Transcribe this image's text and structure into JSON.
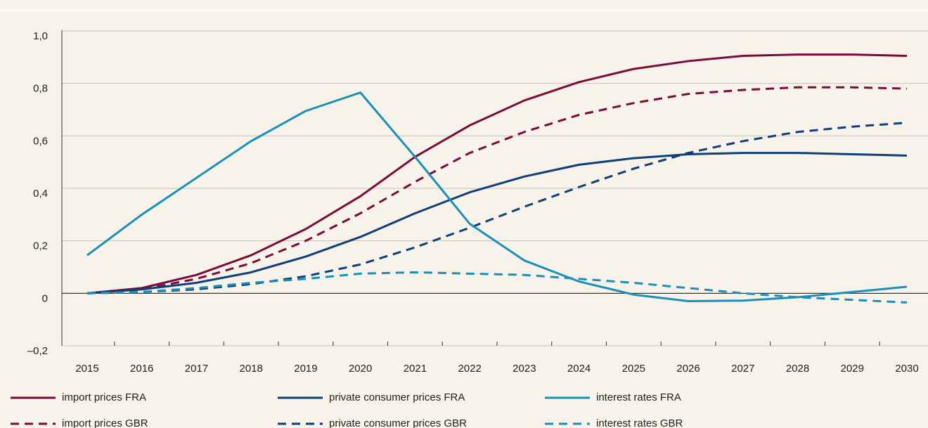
{
  "chart_data": {
    "type": "line",
    "categories": [
      "2015",
      "2016",
      "2017",
      "2018",
      "2019",
      "2020",
      "2021",
      "2022",
      "2023",
      "2024",
      "2025",
      "2026",
      "2027",
      "2028",
      "2029",
      "2030"
    ],
    "ylim": [
      -0.2,
      1.0
    ],
    "yticks": [
      {
        "value": -0.2,
        "label": "–0,2"
      },
      0,
      {
        "value": 0.2,
        "label": "0,2"
      },
      {
        "value": 0.4,
        "label": "0,4"
      },
      {
        "value": 0.6,
        "label": "0,6"
      },
      {
        "value": 0.8,
        "label": "0,8"
      },
      {
        "value": 1.0,
        "label": "1,0"
      }
    ],
    "grid": true,
    "series": [
      {
        "name": "import prices FRA",
        "color": "#7a0b3a",
        "style": "solid",
        "values": [
          0,
          0.02,
          0.07,
          0.145,
          0.245,
          0.37,
          0.52,
          0.64,
          0.735,
          0.805,
          0.855,
          0.885,
          0.905,
          0.91,
          0.91,
          0.905
        ]
      },
      {
        "name": "import prices GBR",
        "color": "#7a0b3a",
        "style": "dashed",
        "values": [
          0,
          0.015,
          0.055,
          0.115,
          0.2,
          0.305,
          0.425,
          0.535,
          0.615,
          0.68,
          0.725,
          0.76,
          0.775,
          0.785,
          0.785,
          0.78
        ]
      },
      {
        "name": "private consumer prices FRA",
        "color": "#0d3f7a",
        "style": "solid",
        "values": [
          0,
          0.015,
          0.04,
          0.08,
          0.14,
          0.215,
          0.305,
          0.385,
          0.445,
          0.49,
          0.515,
          0.53,
          0.535,
          0.535,
          0.53,
          0.525
        ]
      },
      {
        "name": "private consumer prices GBR",
        "color": "#0d3f7a",
        "style": "dashed",
        "values": [
          0,
          0.005,
          0.015,
          0.035,
          0.065,
          0.11,
          0.175,
          0.25,
          0.33,
          0.405,
          0.475,
          0.535,
          0.58,
          0.615,
          0.635,
          0.65
        ]
      },
      {
        "name": "interest rates FRA",
        "color": "#1a8fb8",
        "style": "solid",
        "values": [
          0.145,
          0.3,
          0.44,
          0.58,
          0.695,
          0.765,
          0.52,
          0.265,
          0.125,
          0.045,
          -0.005,
          -0.03,
          -0.028,
          -0.015,
          0.005,
          0.025
        ]
      },
      {
        "name": "interest rates GBR",
        "color": "#1a8fb8",
        "style": "dashed",
        "values": [
          0,
          0.005,
          0.02,
          0.04,
          0.055,
          0.075,
          0.08,
          0.075,
          0.07,
          0.055,
          0.04,
          0.02,
          0,
          -0.015,
          -0.025,
          -0.035
        ]
      }
    ]
  }
}
